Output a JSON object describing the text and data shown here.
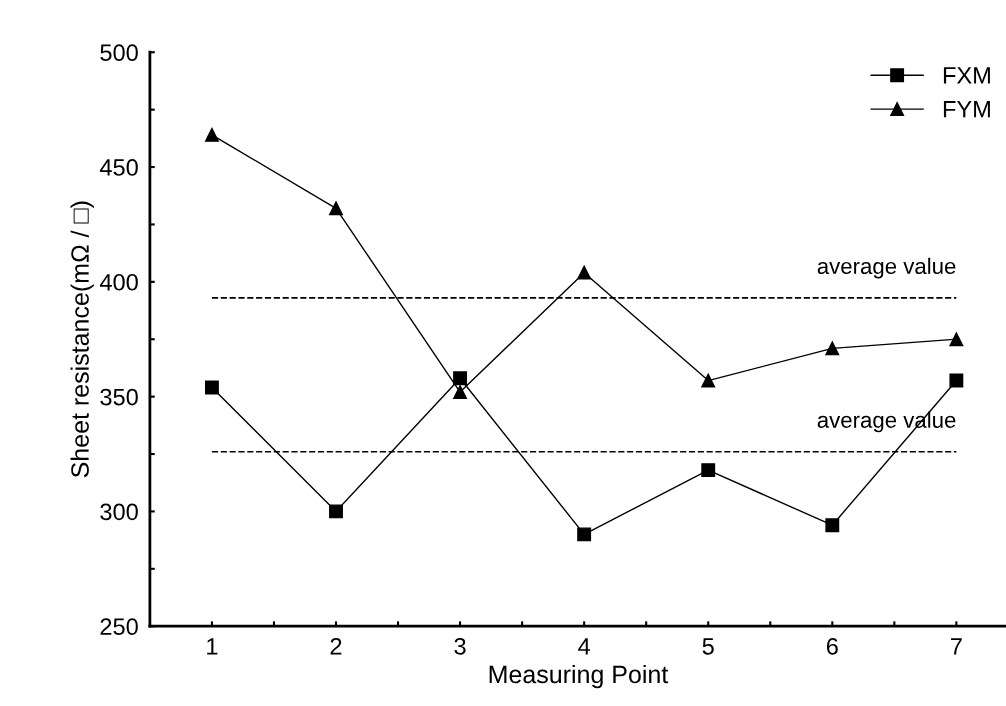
{
  "chart_data": {
    "type": "line",
    "xlabel": "Measuring Point",
    "ylabel": "Sheet resistance(mΩ / □)",
    "x": [
      1,
      2,
      3,
      4,
      5,
      6,
      7
    ],
    "series": [
      {
        "name": "FXM",
        "color": "#000000",
        "marker": "square",
        "values": [
          354,
          300,
          358,
          290,
          318,
          294,
          357
        ]
      },
      {
        "name": "FYM",
        "color": "#000000",
        "marker": "triangle",
        "values": [
          464,
          432,
          352,
          404,
          357,
          371,
          375
        ]
      }
    ],
    "xlim": [
      0.5,
      7.4
    ],
    "xticks": [
      1,
      {
        "value": 1.5,
        "label": null
      },
      2,
      {
        "value": 2.5,
        "label": null
      },
      3,
      {
        "value": 3.5,
        "label": null
      },
      4,
      {
        "value": 4.5,
        "label": null
      },
      5,
      {
        "value": 5.5,
        "label": null
      },
      6,
      {
        "value": 6.5,
        "label": null
      },
      7
    ],
    "ylim": [
      250,
      500
    ],
    "yticks": [
      250,
      {
        "value": 275,
        "label": null
      },
      300,
      {
        "value": 325,
        "label": null
      },
      350,
      {
        "value": 375,
        "label": null
      },
      400,
      {
        "value": 425,
        "label": null
      },
      450,
      {
        "value": 475,
        "label": null
      },
      500
    ],
    "ref_lines": [
      {
        "axis": "y",
        "value": 393,
        "label": "average value",
        "color": "#000000",
        "line_style": "dashed"
      },
      {
        "axis": "y",
        "value": 326,
        "label": "average value",
        "color": "#000000",
        "line_style": "dashed"
      }
    ],
    "grid": false,
    "legend": "top right",
    "line_style": "solid"
  }
}
